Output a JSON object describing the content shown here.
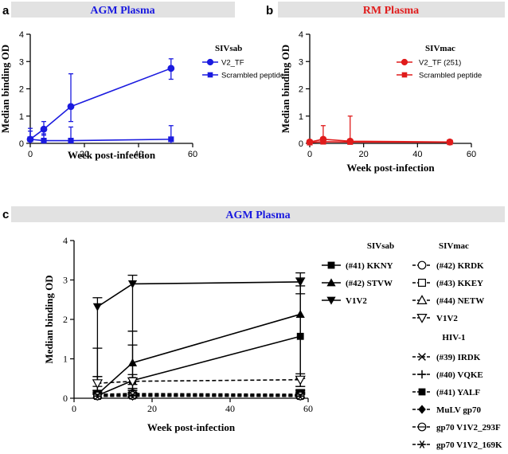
{
  "panels": {
    "a": {
      "letter": "a",
      "banner": "AGM Plasma",
      "banner_color": "#1a1adf"
    },
    "b": {
      "letter": "b",
      "banner": "RM Plasma",
      "banner_color": "#e01b1b"
    },
    "c": {
      "letter": "c",
      "banner": "AGM Plasma",
      "banner_color": "#1a1adf"
    }
  },
  "chart_data": [
    {
      "id": "a",
      "type": "line",
      "title": "AGM Plasma",
      "xlabel": "Week post-infection",
      "ylabel": "Median binding OD",
      "xlim": [
        0,
        60
      ],
      "ylim": [
        0,
        4
      ],
      "xticks": [
        0,
        20,
        40,
        60
      ],
      "yticks": [
        0,
        1,
        2,
        3,
        4
      ],
      "legend_title": "SIVsab",
      "color": "#1a1adf",
      "series": [
        {
          "name": "V2_TF",
          "marker": "circle",
          "dash": "solid",
          "x": [
            0,
            5,
            15,
            52
          ],
          "y": [
            0.15,
            0.52,
            1.35,
            2.75
          ],
          "err_lo": [
            0.0,
            0.3,
            0.8,
            2.35
          ],
          "err_hi": [
            0.45,
            0.8,
            2.55,
            3.1
          ]
        },
        {
          "name": "Scrambled peptide",
          "marker": "square",
          "dash": "solid",
          "x": [
            0,
            5,
            15,
            52
          ],
          "y": [
            0.15,
            0.1,
            0.1,
            0.15
          ],
          "err_lo": [
            0.0,
            0.0,
            0.0,
            0.0
          ],
          "err_hi": [
            0.55,
            0.35,
            0.6,
            0.65
          ]
        }
      ]
    },
    {
      "id": "b",
      "type": "line",
      "title": "RM Plasma",
      "xlabel": "Week post-infection",
      "ylabel": "Median binding OD",
      "xlim": [
        0,
        60
      ],
      "ylim": [
        0,
        4
      ],
      "xticks": [
        0,
        20,
        40,
        60
      ],
      "yticks": [
        0,
        1,
        2,
        3,
        4
      ],
      "legend_title": "SIVmac",
      "color": "#e01b1b",
      "series": [
        {
          "name": "V2_TF (251)",
          "marker": "circle",
          "dash": "solid",
          "x": [
            0,
            5,
            15,
            52
          ],
          "y": [
            0.05,
            0.15,
            0.08,
            0.05
          ],
          "err_lo": [
            0.0,
            0.0,
            0.0,
            0.0
          ],
          "err_hi": [
            0.1,
            0.65,
            1.0,
            0.1
          ]
        },
        {
          "name": "Scrambled peptide",
          "marker": "square",
          "dash": "solid",
          "x": [
            0,
            5,
            15,
            52
          ],
          "y": [
            0.03,
            0.06,
            0.05,
            0.04
          ],
          "err_lo": [
            0.0,
            0.0,
            0.0,
            0.0
          ],
          "err_hi": [
            0.08,
            0.2,
            0.15,
            0.08
          ]
        }
      ]
    },
    {
      "id": "c",
      "type": "line",
      "title": "AGM Plasma",
      "xlabel": "Week post-infection",
      "ylabel": "Median binding OD",
      "xlim": [
        0,
        60
      ],
      "ylim": [
        0,
        4
      ],
      "xticks": [
        0,
        20,
        40,
        60
      ],
      "yticks": [
        0,
        1,
        2,
        3,
        4
      ],
      "color": "#000000",
      "legend_groups": [
        {
          "title": "SIVsab",
          "items": [
            {
              "name": "(#41) KKNY",
              "marker": "square-filled",
              "dash": "solid"
            },
            {
              "name": "(#42) STVW",
              "marker": "triangle-filled",
              "dash": "solid"
            },
            {
              "name": "V1V2",
              "marker": "triangle-down-filled",
              "dash": "solid"
            }
          ]
        },
        {
          "title": "SIVmac",
          "items": [
            {
              "name": "(#42) KRDK",
              "marker": "circle-open",
              "dash": "dashed"
            },
            {
              "name": "(#43) KKEY",
              "marker": "square-open",
              "dash": "dashed"
            },
            {
              "name": "(#44) NETW",
              "marker": "triangle-open",
              "dash": "dashed"
            },
            {
              "name": "V1V2",
              "marker": "triangle-down-open",
              "dash": "dashed"
            }
          ]
        },
        {
          "title": "HIV-1",
          "items": [
            {
              "name": "(#39) IRDK",
              "marker": "x",
              "dash": "dashed"
            },
            {
              "name": "(#40) VQKE",
              "marker": "plus",
              "dash": "dashed"
            },
            {
              "name": "(#41) YALF",
              "marker": "square-filled",
              "dash": "dashed"
            },
            {
              "name": "MuLV gp70",
              "marker": "diamond-filled",
              "dash": "dashed"
            },
            {
              "name": "gp70 V1V2_293F",
              "marker": "circle-dot",
              "dash": "dashed"
            },
            {
              "name": "gp70 V1V2_169K",
              "marker": "star",
              "dash": "dashed"
            }
          ]
        }
      ],
      "series": [
        {
          "name": "V1V2 (SIVsab)",
          "marker": "triangle-down-filled",
          "dash": "solid",
          "x": [
            6,
            15,
            58
          ],
          "y": [
            2.32,
            2.9,
            2.95
          ],
          "err_lo": [
            0.3,
            1.7,
            2.65
          ],
          "err_hi": [
            2.55,
            3.12,
            3.18
          ]
        },
        {
          "name": "(#42) STVW",
          "marker": "triangle-filled",
          "dash": "solid",
          "x": [
            6,
            15,
            58
          ],
          "y": [
            0.1,
            0.9,
            2.13
          ],
          "err_lo": [
            0.0,
            0.35,
            0.5
          ],
          "err_hi": [
            1.27,
            1.7,
            3.05
          ]
        },
        {
          "name": "(#41) KKNY",
          "marker": "square-filled",
          "dash": "solid",
          "x": [
            6,
            15,
            58
          ],
          "y": [
            0.07,
            0.45,
            1.57
          ],
          "err_lo": [
            0.0,
            0.05,
            0.3
          ],
          "err_hi": [
            0.55,
            1.35,
            2.85
          ]
        },
        {
          "name": "V1V2 (SIVmac)",
          "marker": "triangle-down-open",
          "dash": "dashed",
          "x": [
            6,
            15,
            58
          ],
          "y": [
            0.38,
            0.43,
            0.47
          ],
          "err_lo": [
            0.2,
            0.25,
            0.3
          ],
          "err_hi": [
            0.55,
            0.6,
            0.62
          ]
        },
        {
          "name": "(#42) KRDK",
          "marker": "circle-open",
          "dash": "dashed",
          "x": [
            6,
            15,
            58
          ],
          "y": [
            0.1,
            0.12,
            0.1
          ],
          "err_lo": [
            0.0,
            0.0,
            0.0
          ],
          "err_hi": [
            0.2,
            0.25,
            0.22
          ]
        },
        {
          "name": "(#43) KKEY",
          "marker": "square-open",
          "dash": "dashed",
          "x": [
            6,
            15,
            58
          ],
          "y": [
            0.08,
            0.1,
            0.08
          ],
          "err_lo": [
            0.0,
            0.0,
            0.0
          ],
          "err_hi": [
            0.18,
            0.2,
            0.18
          ]
        },
        {
          "name": "(#44) NETW",
          "marker": "triangle-open",
          "dash": "dashed",
          "x": [
            6,
            15,
            58
          ],
          "y": [
            0.09,
            0.1,
            0.09
          ],
          "err_lo": [
            0.0,
            0.0,
            0.0
          ],
          "err_hi": [
            0.2,
            0.2,
            0.2
          ]
        },
        {
          "name": "(#39) IRDK",
          "marker": "x",
          "dash": "dashed",
          "x": [
            6,
            15,
            58
          ],
          "y": [
            0.06,
            0.08,
            0.07
          ],
          "err_lo": [
            0.0,
            0.0,
            0.0
          ],
          "err_hi": [
            0.15,
            0.15,
            0.15
          ]
        },
        {
          "name": "(#40) VQKE",
          "marker": "plus",
          "dash": "dashed",
          "x": [
            6,
            15,
            58
          ],
          "y": [
            0.07,
            0.07,
            0.06
          ],
          "err_lo": [
            0.0,
            0.0,
            0.0
          ],
          "err_hi": [
            0.15,
            0.15,
            0.15
          ]
        },
        {
          "name": "(#41) YALF",
          "marker": "square-filled",
          "dash": "dashed",
          "x": [
            6,
            15,
            58
          ],
          "y": [
            0.05,
            0.06,
            0.05
          ],
          "err_lo": [
            0.0,
            0.0,
            0.0
          ],
          "err_hi": [
            0.12,
            0.12,
            0.12
          ]
        },
        {
          "name": "MuLV gp70",
          "marker": "diamond-filled",
          "dash": "dashed",
          "x": [
            6,
            15,
            58
          ],
          "y": [
            0.05,
            0.05,
            0.05
          ],
          "err_lo": [
            0.0,
            0.0,
            0.0
          ],
          "err_hi": [
            0.1,
            0.1,
            0.1
          ]
        },
        {
          "name": "gp70 V1V2_293F",
          "marker": "circle-dot",
          "dash": "dashed",
          "x": [
            6,
            15,
            58
          ],
          "y": [
            0.06,
            0.07,
            0.06
          ],
          "err_lo": [
            0.0,
            0.0,
            0.0
          ],
          "err_hi": [
            0.12,
            0.12,
            0.12
          ]
        },
        {
          "name": "gp70 V1V2_169K",
          "marker": "star",
          "dash": "dashed",
          "x": [
            6,
            15,
            58
          ],
          "y": [
            0.05,
            0.06,
            0.05
          ],
          "err_lo": [
            0.0,
            0.0,
            0.0
          ],
          "err_hi": [
            0.1,
            0.1,
            0.1
          ]
        }
      ]
    }
  ]
}
